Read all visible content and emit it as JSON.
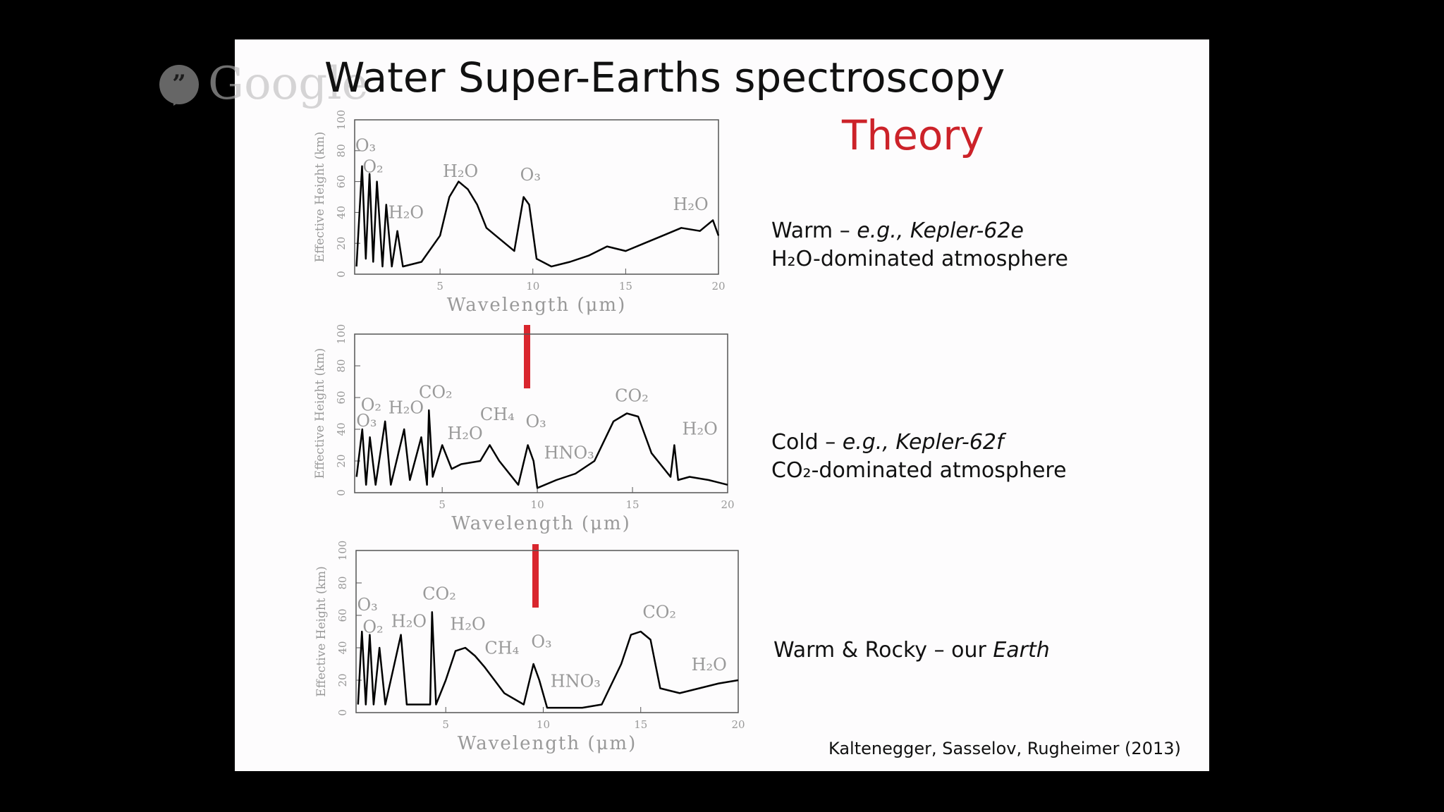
{
  "overlay": {
    "brand": "Google"
  },
  "slide": {
    "title": "Water Super-Earths spectroscopy",
    "subtitle": "Theory",
    "citation": "Kaltenegger, Sasselov, Rugheimer (2013)",
    "descriptions": [
      {
        "lines": [
          [
            {
              "text": "Warm – "
            },
            {
              "text": "e.g., Kepler-62e",
              "italic": true
            }
          ],
          [
            {
              "text": "H₂O-dominated atmosphere"
            }
          ]
        ]
      },
      {
        "lines": [
          [
            {
              "text": "Cold – "
            },
            {
              "text": "e.g., Kepler-62f",
              "italic": true
            }
          ],
          [
            {
              "text": "CO₂-dominated atmosphere"
            }
          ]
        ]
      },
      {
        "lines": [
          [
            {
              "text": "Warm & Rocky – our "
            },
            {
              "text": "Earth",
              "italic": true
            }
          ]
        ]
      }
    ]
  },
  "chart_data": [
    {
      "type": "line",
      "xlabel": "Wavelength (μm)",
      "ylabel": "Effective Height (km)",
      "xlim": [
        0.4,
        20
      ],
      "ylim": [
        0,
        100
      ],
      "xticks": [
        5,
        10,
        15,
        20
      ],
      "yticks": [
        0,
        20,
        40,
        60,
        80,
        100
      ],
      "color": "#000000",
      "x": [
        0.5,
        0.8,
        1.0,
        1.2,
        1.4,
        1.6,
        1.9,
        2.1,
        2.4,
        2.7,
        3.0,
        4,
        5,
        5.5,
        6,
        6.5,
        7,
        7.5,
        8,
        9,
        9.5,
        9.8,
        10.2,
        11,
        12,
        13,
        14,
        15,
        16,
        17,
        18,
        19,
        19.7,
        20
      ],
      "values": [
        5,
        70,
        10,
        65,
        8,
        60,
        5,
        45,
        5,
        28,
        5,
        8,
        25,
        50,
        60,
        55,
        45,
        30,
        25,
        15,
        50,
        45,
        10,
        5,
        8,
        12,
        18,
        15,
        20,
        25,
        30,
        28,
        35,
        25
      ],
      "annotations": [
        "O₃",
        "O₂",
        "H₂O",
        "H₂O",
        "O₃",
        "H₂O"
      ]
    },
    {
      "type": "line",
      "xlabel": "Wavelength (μm)",
      "ylabel": "Effective Height (km)",
      "xlim": [
        0.4,
        20
      ],
      "ylim": [
        0,
        100
      ],
      "xticks": [
        5,
        10,
        15,
        20
      ],
      "yticks": [
        0,
        20,
        40,
        60,
        80,
        100
      ],
      "color": "#000000",
      "x": [
        0.5,
        0.8,
        1.0,
        1.2,
        1.5,
        2.0,
        2.3,
        3.0,
        3.3,
        3.9,
        4.2,
        4.3,
        4.5,
        5,
        5.5,
        6,
        7,
        7.5,
        8,
        9,
        9.5,
        9.8,
        10,
        11,
        12,
        13,
        14,
        14.7,
        15.3,
        16,
        17,
        17.2,
        17.4,
        18,
        19,
        20
      ],
      "values": [
        10,
        40,
        5,
        35,
        5,
        45,
        5,
        40,
        8,
        35,
        5,
        52,
        10,
        30,
        15,
        18,
        20,
        30,
        20,
        5,
        30,
        20,
        3,
        8,
        12,
        20,
        45,
        50,
        48,
        25,
        10,
        30,
        8,
        10,
        8,
        5
      ],
      "annotations": [
        "O₂",
        "O₃",
        "H₂O",
        "CO₂",
        "CH₄",
        "H₂O",
        "O₃",
        "HNO₃",
        "CO₂",
        "H₂O"
      ]
    },
    {
      "type": "line",
      "xlabel": "Wavelength (μm)",
      "ylabel": "Effective Height (km)",
      "xlim": [
        0.4,
        20
      ],
      "ylim": [
        0,
        100
      ],
      "xticks": [
        5,
        10,
        15,
        20
      ],
      "yticks": [
        0,
        20,
        40,
        60,
        80,
        100
      ],
      "color": "#000000",
      "x": [
        0.5,
        0.7,
        0.9,
        1.1,
        1.3,
        1.6,
        1.9,
        2.7,
        3.0,
        3.5,
        4.2,
        4.3,
        4.5,
        5,
        5.5,
        6,
        6.5,
        7,
        8,
        9,
        9.5,
        9.8,
        10.2,
        12,
        13,
        14,
        14.5,
        15,
        15.5,
        16,
        17,
        18,
        19,
        20
      ],
      "values": [
        5,
        50,
        5,
        48,
        5,
        40,
        5,
        48,
        5,
        5,
        5,
        62,
        5,
        20,
        38,
        40,
        35,
        28,
        12,
        5,
        30,
        20,
        3,
        3,
        5,
        30,
        48,
        50,
        45,
        15,
        12,
        15,
        18,
        20
      ],
      "annotations": [
        "O₃",
        "O₂",
        "H₂O",
        "CO₂",
        "H₂O",
        "CH₄",
        "O₃",
        "HNO₃",
        "CO₂",
        "H₂O"
      ]
    }
  ]
}
